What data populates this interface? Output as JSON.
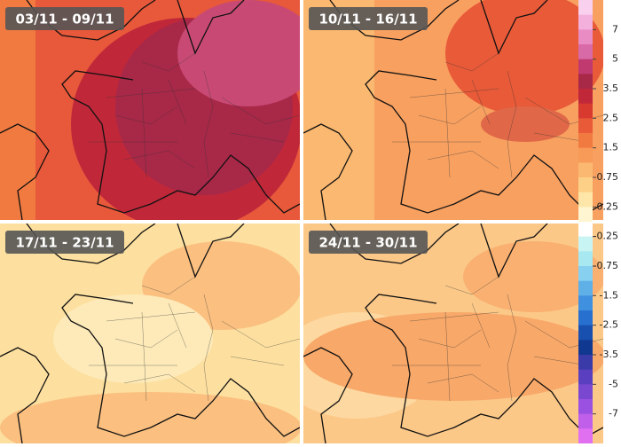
{
  "panels": [
    {
      "label": "03/11 - 09/11"
    },
    {
      "label": "10/11 - 16/11"
    },
    {
      "label": "17/11 - 23/11"
    },
    {
      "label": "24/11 - 30/11"
    }
  ],
  "legend": {
    "ticks": [
      "7",
      "5",
      "3.5",
      "2.5",
      "1.5",
      "0.75",
      "0.25",
      "-0.25",
      "-0.75",
      "-1.5",
      "-2.5",
      "-3.5",
      "-5",
      "-7"
    ]
  }
}
